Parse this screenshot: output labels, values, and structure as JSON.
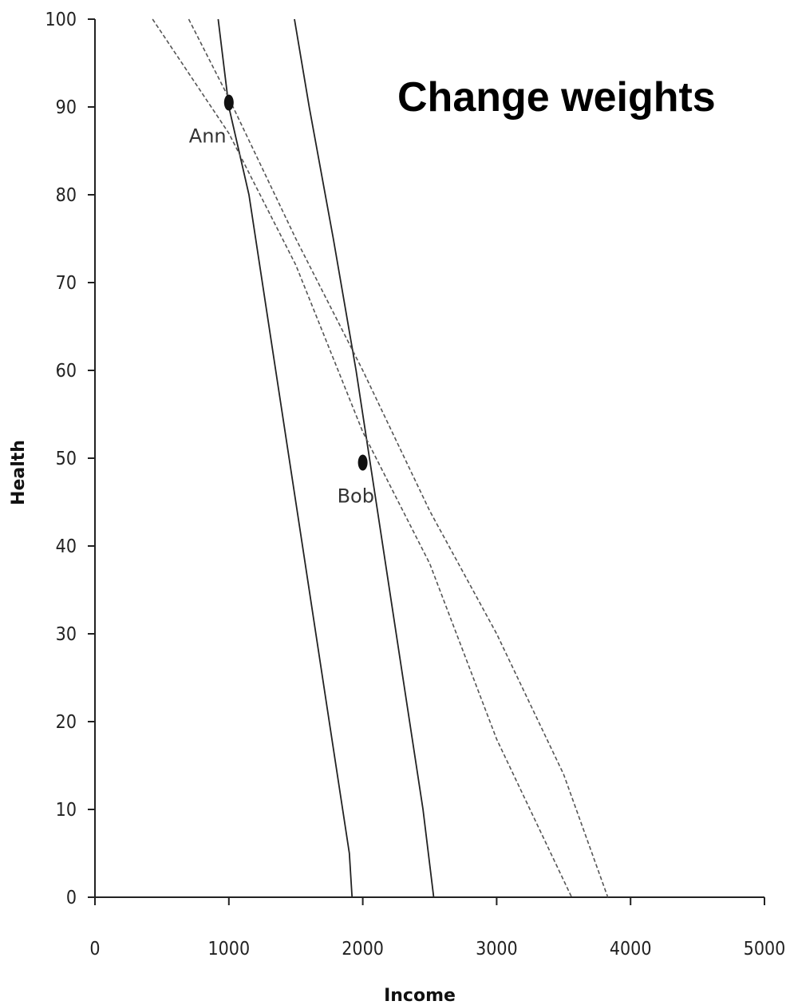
{
  "chart_data": {
    "type": "line",
    "title": "Change weights",
    "xlabel": "Income",
    "ylabel": "Health",
    "xlim": [
      0,
      5000
    ],
    "ylim": [
      0,
      100
    ],
    "xticks": [
      "0",
      "1000",
      "2000",
      "3000",
      "4000",
      "5000"
    ],
    "yticks": [
      "0",
      "10",
      "20",
      "30",
      "40",
      "50",
      "60",
      "70",
      "80",
      "90",
      "100"
    ],
    "series": [
      {
        "style": "solid",
        "color": "#222222",
        "x": [
          920,
          1000,
          1150,
          1350,
          1550,
          1750,
          1900,
          1920
        ],
        "y": [
          100,
          90,
          80,
          60,
          40,
          20,
          5,
          0
        ]
      },
      {
        "style": "solid",
        "color": "#222222",
        "x": [
          1490,
          1600,
          1780,
          1950,
          2100,
          2300,
          2450,
          2530
        ],
        "y": [
          100,
          90,
          75,
          60,
          45,
          25,
          10,
          0
        ]
      },
      {
        "style": "dashed",
        "color": "#555555",
        "x": [
          430,
          1000,
          1500,
          2000,
          2500,
          3000,
          3560
        ],
        "y": [
          100,
          87,
          72,
          53,
          38,
          18,
          0
        ]
      },
      {
        "style": "dashed",
        "color": "#555555",
        "x": [
          700,
          1000,
          1500,
          2000,
          2500,
          3000,
          3500,
          3830
        ],
        "y": [
          100,
          91,
          75,
          60,
          44,
          30,
          14,
          0
        ]
      }
    ],
    "points": [
      {
        "label": "Ann",
        "x": 1000,
        "y": 90.5
      },
      {
        "label": "Bob",
        "x": 2000,
        "y": 49.5
      }
    ],
    "grid": false,
    "legend": "none"
  }
}
